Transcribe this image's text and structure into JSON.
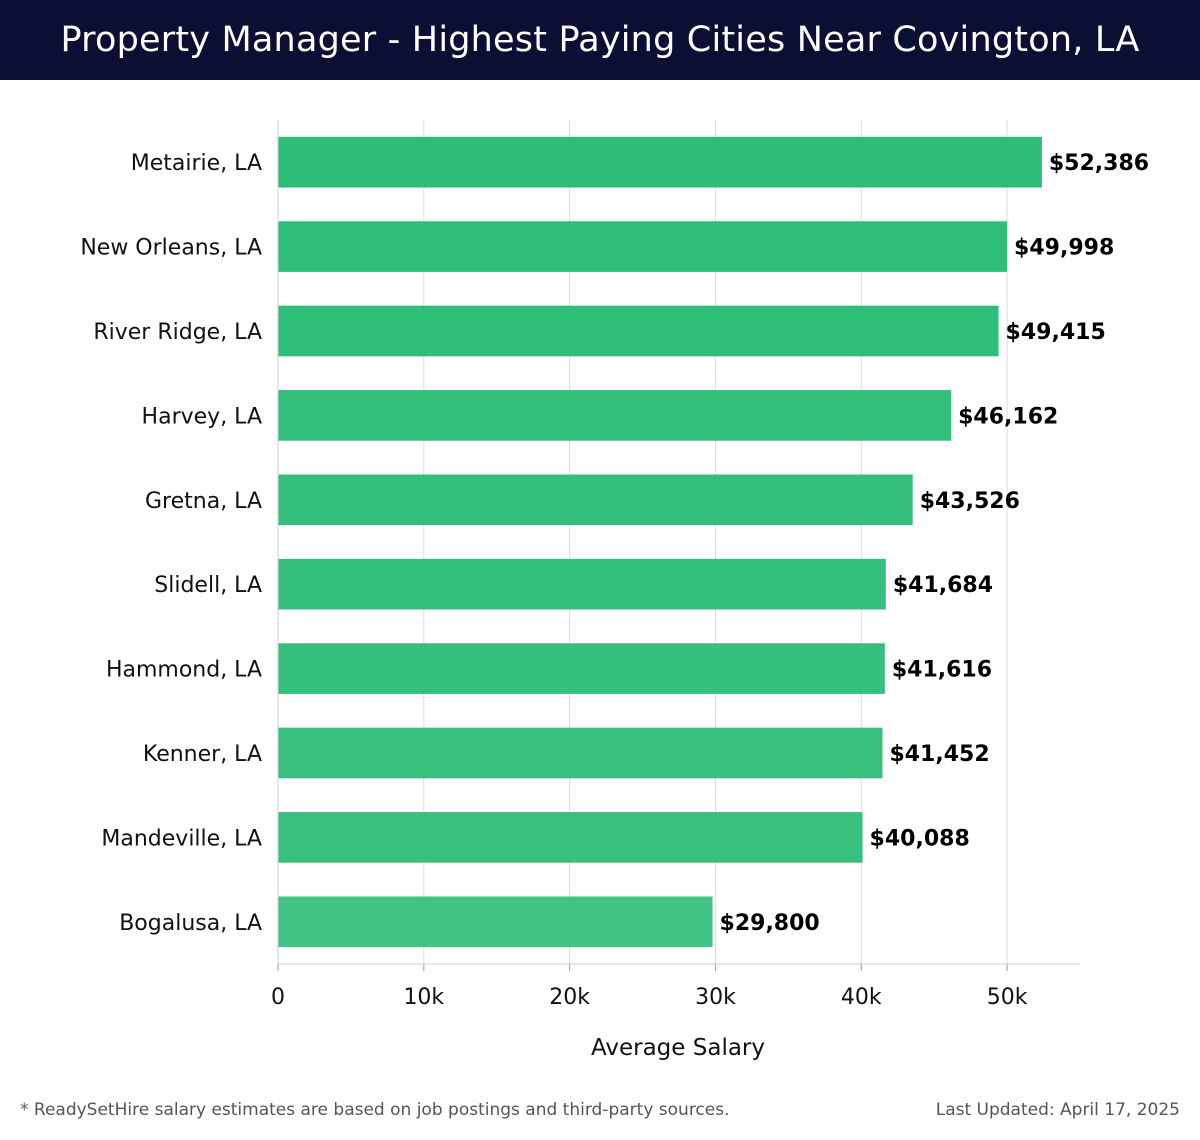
{
  "header": {
    "title": "Property Manager - Highest Paying Cities Near Covington, LA"
  },
  "chart_data": {
    "type": "bar",
    "orientation": "horizontal",
    "title": "Property Manager - Highest Paying Cities Near Covington, LA",
    "xlabel": "Average Salary",
    "ylabel": "",
    "xlim": [
      0,
      55000
    ],
    "xticks": [
      0,
      10000,
      20000,
      30000,
      40000,
      50000
    ],
    "xtick_labels": [
      "0",
      "10k",
      "20k",
      "30k",
      "40k",
      "50k"
    ],
    "grid": "vertical",
    "categories": [
      "Metairie, LA",
      "New Orleans, LA",
      "River Ridge, LA",
      "Harvey, LA",
      "Gretna, LA",
      "Slidell, LA",
      "Hammond, LA",
      "Kenner, LA",
      "Mandeville, LA",
      "Bogalusa, LA"
    ],
    "values": [
      52386,
      49998,
      49415,
      46162,
      43526,
      41684,
      41616,
      41452,
      40088,
      29800
    ],
    "value_labels": [
      "$52,386",
      "$49,998",
      "$49,415",
      "$46,162",
      "$43,526",
      "$41,684",
      "$41,616",
      "$41,452",
      "$40,088",
      "$29,800"
    ],
    "bar_color": "#2dbd78"
  },
  "footer": {
    "note": "* ReadySetHire salary estimates are based on job postings and third-party sources.",
    "updated": "Last Updated: April 17, 2025"
  }
}
